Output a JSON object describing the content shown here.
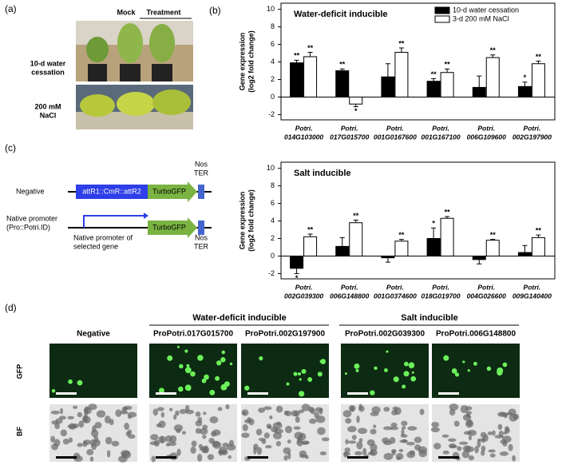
{
  "panel_labels": [
    "(a)",
    "(b)",
    "(c)",
    "(d)"
  ],
  "panel_a": {
    "columns": [
      "Mock",
      "Treatment"
    ],
    "rows": [
      "10-d water\ncessation",
      "200 mM\nNaCl"
    ]
  },
  "chart_data": [
    {
      "type": "bar",
      "title": "Water-deficit inducible",
      "ylabel": "Gene expression\n(log2 fold change)",
      "categories": [
        "Potri.\n014G103000",
        "Potri.\n017G015700",
        "Potri.\n001G0167600",
        "Potri.\n001G167100",
        "Potri.\n006G109600",
        "Potri.\n002G197900"
      ],
      "series": [
        {
          "name": "10-d water cessation",
          "color": "#000000",
          "values": [
            3.9,
            3.0,
            2.3,
            1.8,
            1.1,
            1.2
          ],
          "errors": [
            0.3,
            0.2,
            1.5,
            0.3,
            1.3,
            0.5
          ],
          "annotations": [
            "**",
            "**",
            null,
            "**",
            null,
            "*"
          ]
        },
        {
          "name": "3-d 200 mM NaCl",
          "color": "#ffffff",
          "values": [
            4.6,
            -0.8,
            5.1,
            2.8,
            4.5,
            3.8
          ],
          "errors": [
            0.5,
            0.3,
            0.5,
            0.4,
            0.3,
            0.3
          ],
          "annotations": [
            "**",
            "*",
            "**",
            "**",
            "**",
            "**"
          ]
        }
      ],
      "ylim": [
        -2.6,
        10.7
      ],
      "yticks": [
        -2,
        0,
        2,
        4,
        6,
        8,
        10
      ],
      "legend": "upper right"
    },
    {
      "type": "bar",
      "title": "Salt inducible",
      "ylabel": "Gene expression\n(log2 fold change)",
      "categories": [
        "Potri.\n002G039300",
        "Potri.\n006G148800",
        "Potri.\n001G0374600",
        "Potri.\n018G019700",
        "Potri.\n004G026600",
        "Potri.\n009G140400"
      ],
      "series": [
        {
          "color": "#000000",
          "values": [
            -1.4,
            1.1,
            -0.2,
            2.0,
            -0.4,
            0.4
          ],
          "errors": [
            0.6,
            1.0,
            0.5,
            1.2,
            0.5,
            0.8
          ],
          "annotations": [
            "*",
            null,
            null,
            "*",
            null,
            null
          ]
        },
        {
          "color": "#ffffff",
          "values": [
            2.2,
            3.8,
            1.7,
            4.3,
            1.8,
            2.1
          ],
          "errors": [
            0.3,
            0.3,
            0.2,
            0.2,
            0.1,
            0.3
          ],
          "annotations": [
            "**",
            "**",
            "**",
            "**",
            "**",
            "**"
          ]
        }
      ],
      "ylim": [
        -2.6,
        10.7
      ],
      "yticks": [
        -2,
        0,
        2,
        4,
        6,
        8,
        10
      ]
    }
  ],
  "panel_c": {
    "rows": [
      "Negative",
      "Native promoter\n(Pro::Potri.ID)"
    ],
    "cassette": "attR1::CmR::attR2",
    "reporter": "TurboGFP",
    "terminator": "Nos\nTER",
    "promoter": "Native promoter of\nselected gene"
  },
  "panel_d": {
    "groups": [
      "Water-deficit inducible",
      "Salt  inducible"
    ],
    "samples": [
      "Negative",
      "ProPotri.017G015700",
      "ProPotri.002G197900",
      "ProPotri.002G039300",
      "ProPotri.006G148800"
    ],
    "rows": [
      "GFP",
      "BF"
    ]
  }
}
